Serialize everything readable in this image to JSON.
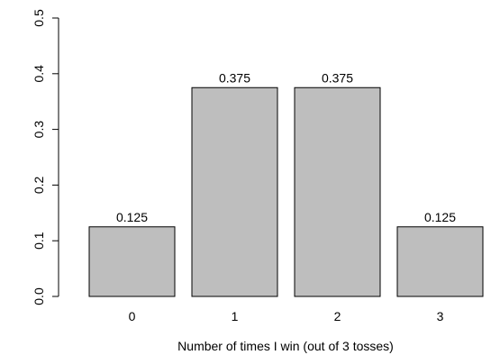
{
  "chart_data": {
    "type": "bar",
    "title": "",
    "xlabel": "Number of times I win (out of 3 tosses)",
    "ylabel": "",
    "categories": [
      "0",
      "1",
      "2",
      "3"
    ],
    "values": [
      0.125,
      0.375,
      0.375,
      0.125
    ],
    "data_labels": [
      "0.125",
      "0.375",
      "0.375",
      "0.125"
    ],
    "ylim": [
      0,
      0.5
    ],
    "yticks": [
      0.0,
      0.1,
      0.2,
      0.3,
      0.4,
      0.5
    ],
    "ytick_labels": [
      "0.0",
      "0.1",
      "0.2",
      "0.3",
      "0.4",
      "0.5"
    ],
    "grid": false,
    "legend": "none",
    "bar_color": "#bebebe"
  }
}
